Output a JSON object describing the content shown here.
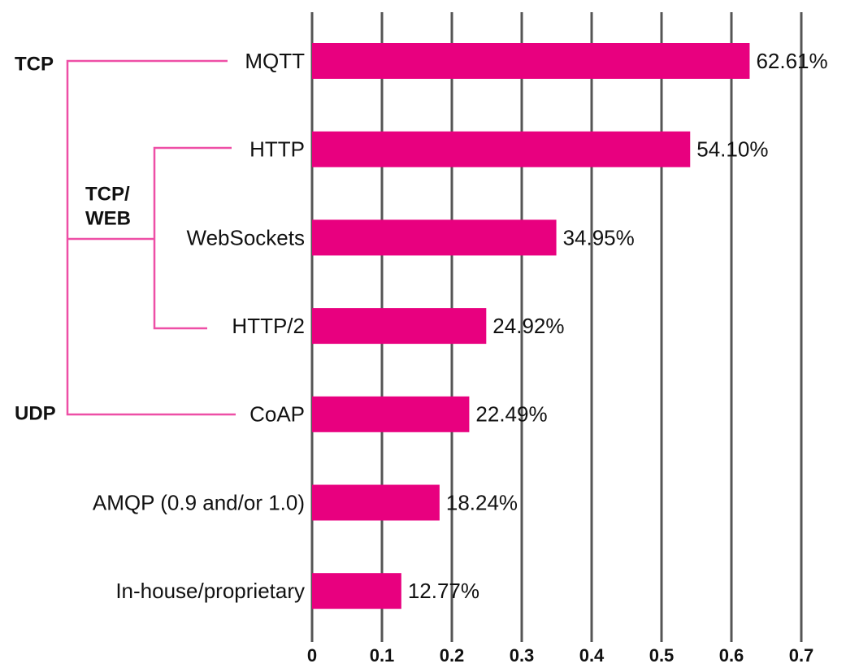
{
  "chart_data": {
    "type": "hbar",
    "categories": [
      "MQTT",
      "HTTP",
      "WebSockets",
      "HTTP/2",
      "CoAP",
      "AMQP (0.9 and/or 1.0)",
      "In-house/proprietary"
    ],
    "values": [
      0.6261,
      0.541,
      0.3495,
      0.2492,
      0.2249,
      0.1824,
      0.1277
    ],
    "value_labels": [
      "62.61%",
      "54.10%",
      "34.95%",
      "24.92%",
      "22.49%",
      "18.24%",
      "12.77%"
    ],
    "color": "#e8007f",
    "xlim": [
      0,
      0.7
    ],
    "xticks": [
      0,
      0.1,
      0.2,
      0.3,
      0.4,
      0.5,
      0.6,
      0.7
    ],
    "grid": true,
    "groups": [
      {
        "lines": [
          "TCP"
        ]
      },
      {
        "lines": [
          "TCP/",
          "WEB"
        ]
      },
      {
        "lines": [
          "UDP"
        ]
      }
    ]
  }
}
